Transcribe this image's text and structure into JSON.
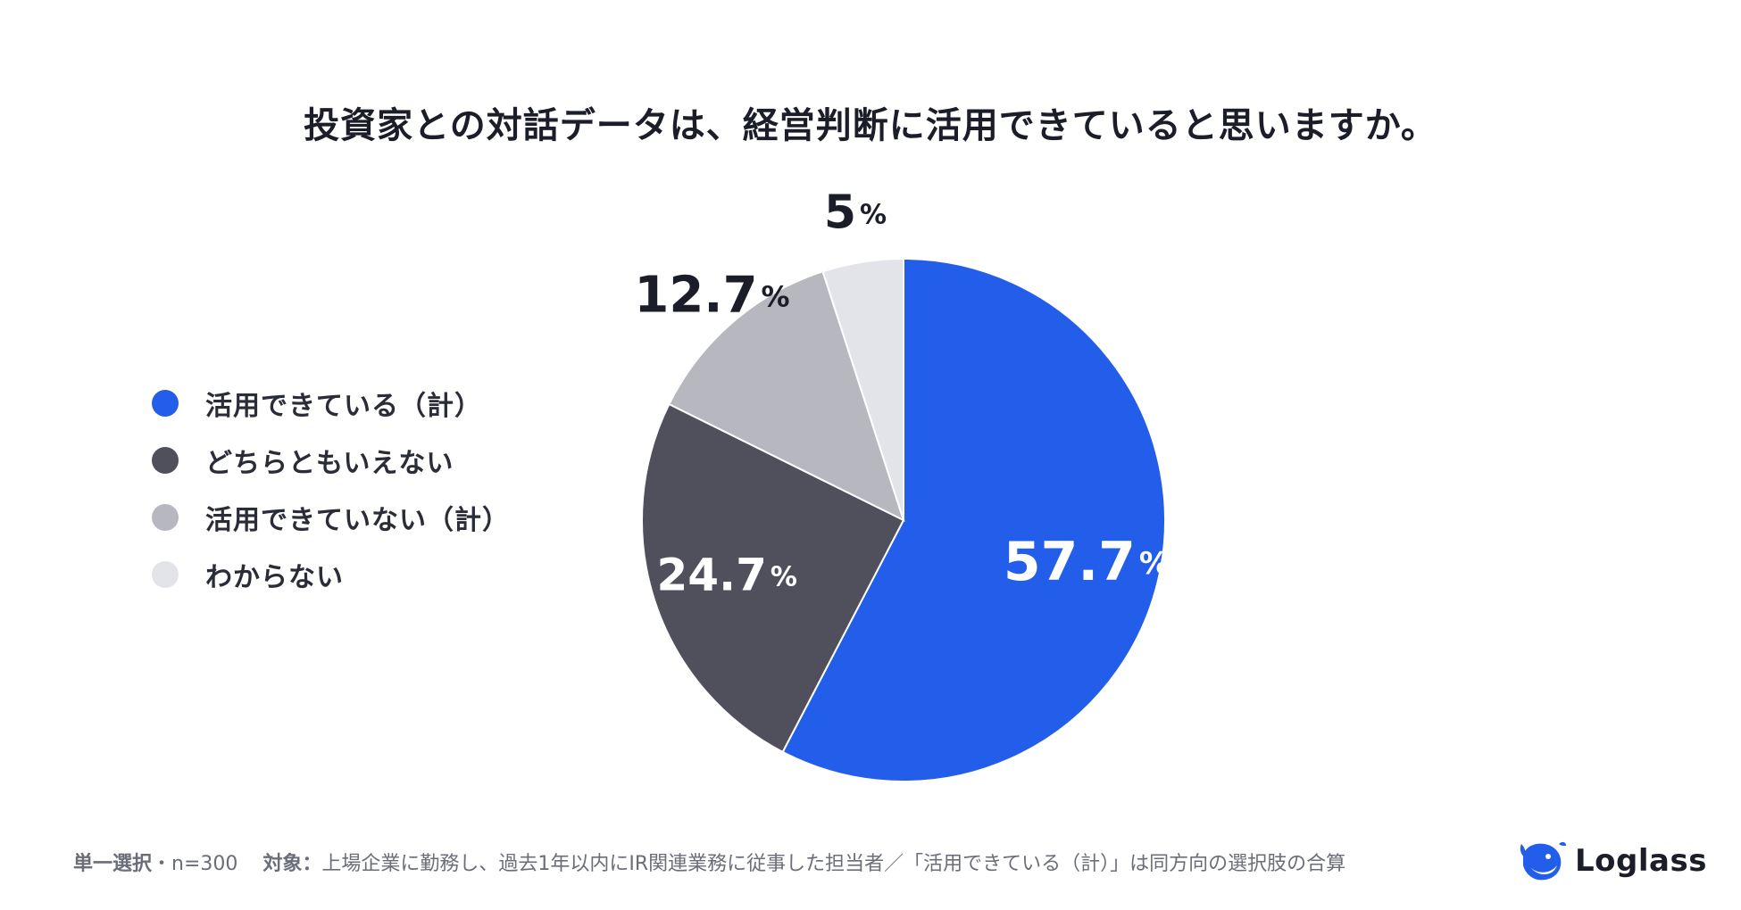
{
  "chart_data": {
    "type": "pie",
    "title": "投資家との対話データは、経営判断に活用できていると思いますか。",
    "categories": [
      "活用できている（計）",
      "どちらともいえない",
      "活用できていない（計）",
      "わからない"
    ],
    "values": [
      57.7,
      24.7,
      12.7,
      5
    ],
    "labels": [
      "57.7",
      "24.7",
      "12.7",
      "5"
    ],
    "unit": "%",
    "colors": [
      "#225ee9",
      "#50505c",
      "#b7b7c0",
      "#e3e4ea"
    ],
    "label_colors": [
      "#ffffff",
      "#ffffff",
      "#1b1d29",
      "#1b1d29"
    ],
    "legend_position": "left",
    "start_angle": "top",
    "direction": "clockwise"
  },
  "footer": {
    "method_label": "単一選択",
    "sample": "・n=300",
    "target_label": "対象：",
    "target_text": "上場企業に勤務し、過去1年以内にIR関連業務に従事した担当者／「活用できている（計）」は同方向の選択肢の合算"
  },
  "logo": {
    "text": "Loglass",
    "icon": "whale-icon",
    "color": "#225ee9"
  }
}
